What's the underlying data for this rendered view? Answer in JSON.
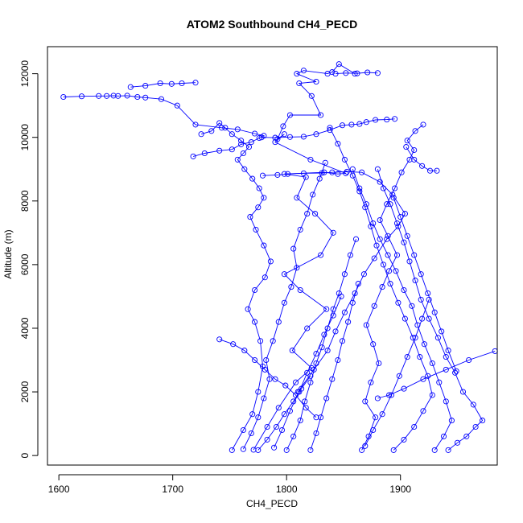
{
  "chart_data": {
    "type": "line",
    "title": "ATOM2 Southbound CH4_PECD",
    "xlabel": "CH4_PECD",
    "ylabel": "Altitude (m)",
    "xlim": [
      1590,
      1985
    ],
    "ylim": [
      -300,
      12850
    ],
    "xticks": [
      1600,
      1700,
      1800,
      1900
    ],
    "yticks": [
      0,
      2000,
      4000,
      6000,
      8000,
      10000,
      12000
    ],
    "grid": false,
    "legend": "none",
    "color": "#0000ff",
    "marker": "open-circle",
    "series": [
      {
        "x": [
          1771,
          1783,
          1793,
          1808,
          1822,
          1805,
          1818,
          1835,
          1812,
          1798,
          1830,
          1841,
          1825,
          1809,
          1817,
          1798,
          1833,
          1845,
          1852,
          1821,
          1790,
          1798,
          1792,
          1797,
          1803,
          1830,
          1822,
          1811,
          1826,
          1809,
          1815,
          1836,
          1840,
          1846,
          1860
        ],
        "y": [
          180,
          900,
          1500,
          2300,
          2750,
          3300,
          4000,
          4600,
          5200,
          5700,
          6300,
          7000,
          7600,
          8100,
          8750,
          8850,
          8900,
          8850,
          8870,
          9300,
          9850,
          10100,
          9950,
          10350,
          10700,
          10700,
          11300,
          11700,
          11750,
          12000,
          12100,
          12000,
          12050,
          12300,
          12000
        ]
      },
      {
        "x": [
          1604,
          1620,
          1635,
          1642,
          1648,
          1652,
          1660,
          1669,
          1676,
          1690,
          1704,
          1720,
          1743,
          1757,
          1772,
          1780,
          1776,
          1769,
          1760,
          1752,
          1741,
          1728,
          1718
        ],
        "y": [
          11270,
          11290,
          11300,
          11300,
          11310,
          11300,
          11310,
          11270,
          11250,
          11200,
          11000,
          10400,
          10300,
          10250,
          10120,
          10050,
          9980,
          9850,
          9780,
          9620,
          9580,
          9500,
          9400
        ]
      },
      {
        "x": [
          1663,
          1676,
          1689,
          1699,
          1708,
          1720
        ],
        "y": [
          11580,
          11620,
          11700,
          11680,
          11700,
          11720
        ]
      },
      {
        "x": [
          1778,
          1790,
          1803,
          1815,
          1826,
          1838,
          1849,
          1857,
          1864,
          1870,
          1878,
          1888,
          1895
        ],
        "y": [
          10000,
          9990,
          10010,
          10020,
          10100,
          10230,
          10380,
          10400,
          10420,
          10480,
          10550,
          10560,
          10580
        ]
      },
      {
        "x": [
          1779,
          1792,
          1801,
          1815,
          1831,
          1840,
          1853,
          1866,
          1882,
          1893,
          1904,
          1898,
          1888,
          1877,
          1868,
          1860,
          1851,
          1843,
          1836,
          1824,
          1810
        ],
        "y": [
          8800,
          8820,
          8850,
          8870,
          8880,
          8900,
          8920,
          8900,
          8600,
          8200,
          7600,
          7200,
          6800,
          6200,
          5700,
          5100,
          4500,
          3900,
          3300,
          2700,
          2000
        ]
      },
      {
        "x": [
          1752,
          1762,
          1770,
          1775,
          1779,
          1777,
          1772,
          1766,
          1772,
          1781,
          1786,
          1780,
          1773,
          1768,
          1775,
          1780,
          1776,
          1770,
          1763,
          1757,
          1762,
          1767,
          1760,
          1752,
          1746,
          1741,
          1734,
          1725
        ],
        "y": [
          170,
          800,
          1300,
          2000,
          2800,
          3600,
          4200,
          4600,
          5200,
          5600,
          6100,
          6600,
          7100,
          7500,
          7800,
          8100,
          8400,
          8700,
          9000,
          9300,
          9500,
          9700,
          9900,
          10100,
          10300,
          10450,
          10200,
          10100
        ]
      },
      {
        "x": [
          1762,
          1769,
          1775,
          1780,
          1785,
          1782,
          1788,
          1793,
          1798,
          1804,
          1809,
          1806,
          1812,
          1818,
          1823,
          1829,
          1834
        ],
        "y": [
          200,
          700,
          1200,
          1800,
          2400,
          3000,
          3600,
          4200,
          4800,
          5300,
          5900,
          6500,
          7100,
          7600,
          8200,
          8700,
          9200
        ]
      },
      {
        "x": [
          1866,
          1872,
          1878,
          1869,
          1874,
          1881,
          1876,
          1870,
          1877,
          1884,
          1890,
          1897,
          1889,
          1882,
          1888,
          1895,
          1901,
          1908,
          1912,
          1906,
          1913,
          1920
        ],
        "y": [
          170,
          600,
          1200,
          1700,
          2300,
          2900,
          3500,
          4100,
          4700,
          5300,
          5800,
          6300,
          6900,
          7400,
          7900,
          8400,
          8900,
          9300,
          9600,
          9900,
          10200,
          10400
        ]
      },
      {
        "x": [
          1894,
          1903,
          1912,
          1920,
          1928,
          1924,
          1917,
          1911,
          1904,
          1898,
          1891,
          1885,
          1879,
          1874,
          1869,
          1864,
          1858,
          1851,
          1845,
          1838
        ],
        "y": [
          170,
          500,
          900,
          1400,
          1900,
          2500,
          3100,
          3700,
          4300,
          4800,
          5400,
          6000,
          6600,
          7200,
          7800,
          8300,
          8800,
          9300,
          9800,
          10300
        ]
      },
      {
        "x": [
          1930,
          1938,
          1945,
          1940,
          1934,
          1928,
          1921,
          1915,
          1910,
          1903,
          1896,
          1889,
          1882,
          1876,
          1870,
          1864,
          1858
        ],
        "y": [
          170,
          600,
          1100,
          1700,
          2300,
          2900,
          3500,
          4100,
          4700,
          5200,
          5800,
          6300,
          6800,
          7300,
          7900,
          8400,
          9000
        ]
      },
      {
        "x": [
          1942,
          1950,
          1958,
          1966,
          1972,
          1964,
          1955,
          1948,
          1940,
          1933,
          1925,
          1918,
          1913,
          1908,
          1903,
          1897,
          1891,
          1885,
          1880
        ],
        "y": [
          170,
          400,
          600,
          900,
          1100,
          1600,
          2000,
          2600,
          3100,
          3700,
          4300,
          4900,
          5500,
          6100,
          6700,
          7300,
          7900,
          8400,
          9000
        ]
      },
      {
        "x": [
          1983,
          1960,
          1940,
          1920,
          1903,
          1890,
          1880
        ],
        "y": [
          3280,
          3000,
          2700,
          2400,
          2100,
          1900,
          1800
        ]
      },
      {
        "x": [
          1741,
          1753,
          1763,
          1772,
          1781,
          1790,
          1799,
          1808,
          1817,
          1826
        ],
        "y": [
          3650,
          3500,
          3300,
          3000,
          2700,
          2400,
          2200,
          1900,
          1500,
          1200
        ]
      },
      {
        "x": [
          1800,
          1806,
          1812,
          1816,
          1821,
          1826,
          1831,
          1836,
          1841,
          1846,
          1851,
          1856,
          1861
        ],
        "y": [
          170,
          600,
          1100,
          1700,
          2300,
          2900,
          3400,
          4000,
          4600,
          5100,
          5700,
          6300,
          6800
        ]
      },
      {
        "x": [
          1821,
          1826,
          1830,
          1835,
          1840,
          1845,
          1849,
          1854,
          1858,
          1863
        ],
        "y": [
          170,
          700,
          1200,
          1800,
          2400,
          3000,
          3600,
          4200,
          4800,
          5400
        ]
      },
      {
        "x": [
          1869,
          1876,
          1884,
          1892,
          1899,
          1906,
          1913,
          1919,
          1925
        ],
        "y": [
          300,
          800,
          1300,
          1900,
          2500,
          3100,
          3700,
          4300,
          4900
        ]
      },
      {
        "x": [
          1789,
          1796,
          1803,
          1811,
          1818,
          1826,
          1833,
          1841,
          1848
        ],
        "y": [
          250,
          800,
          1400,
          2000,
          2600,
          3200,
          3800,
          4400,
          5000
        ]
      },
      {
        "x": [
          1949,
          1942,
          1936,
          1930,
          1924,
          1918,
          1912,
          1906,
          1900,
          1894
        ],
        "y": [
          2650,
          3300,
          3900,
          4500,
          5100,
          5700,
          6300,
          6900,
          7500,
          8100
        ]
      },
      {
        "x": [
          1775,
          1783,
          1791,
          1798,
          1806,
          1813,
          1821
        ],
        "y": [
          170,
          500,
          900,
          1300,
          1700,
          2100,
          2500
        ]
      },
      {
        "x": [
          1905,
          1912,
          1919,
          1926,
          1932
        ],
        "y": [
          9700,
          9300,
          9100,
          8950,
          8950
        ]
      },
      {
        "x": [
          1843,
          1852,
          1862,
          1871,
          1880
        ],
        "y": [
          12000,
          12020,
          12010,
          12040,
          12020
        ]
      }
    ]
  }
}
